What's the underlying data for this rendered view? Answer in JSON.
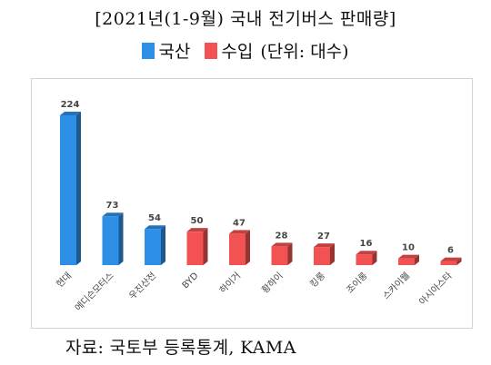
{
  "chart_data": {
    "type": "bar",
    "title": "[2021년(1-9월) 국내 전기버스 판매량]",
    "categories": [
      "현대",
      "에디슨모터스",
      "우진산전",
      "BYD",
      "하이거",
      "황하이",
      "킹롱",
      "조이롱",
      "스카이웰",
      "아시아스타"
    ],
    "values": [
      224,
      73,
      54,
      50,
      47,
      28,
      27,
      16,
      10,
      6
    ],
    "series_origin": [
      "국산",
      "국산",
      "국산",
      "수입",
      "수입",
      "수입",
      "수입",
      "수입",
      "수입",
      "수입"
    ],
    "legend": [
      {
        "label": "국산",
        "color": "#2e8fe6"
      },
      {
        "label": "수입",
        "color": "#f25252"
      }
    ],
    "legend_unit": "(단위: 대수)",
    "ylim": [
      0,
      224
    ],
    "grid": false,
    "legend_position": "top"
  },
  "source": "자료: 국토부 등록통계, KAMA"
}
